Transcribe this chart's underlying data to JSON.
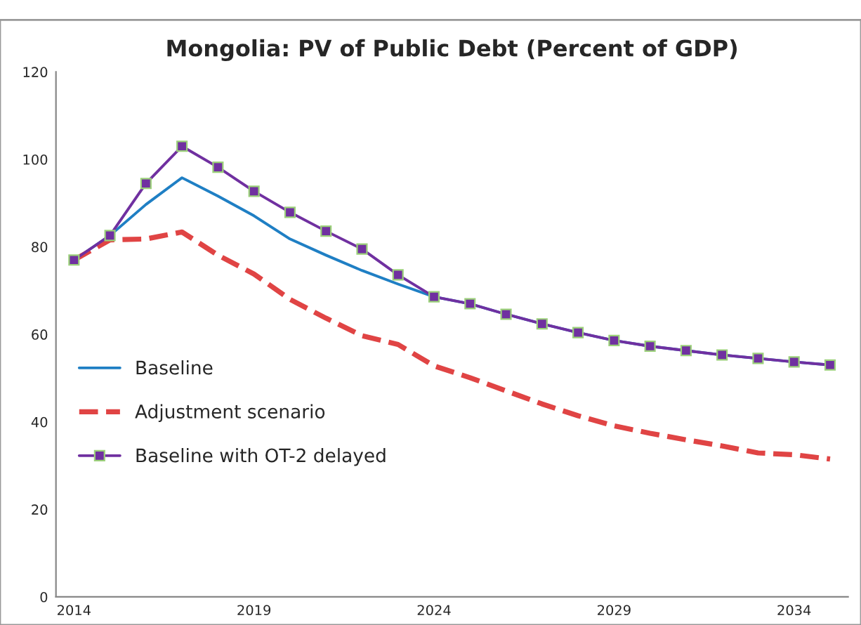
{
  "chart_data": {
    "type": "line",
    "title": "Mongolia: PV of Public Debt (Percent of GDP)",
    "x": [
      2014,
      2015,
      2016,
      2017,
      2018,
      2019,
      2020,
      2021,
      2022,
      2023,
      2024,
      2025,
      2026,
      2027,
      2028,
      2029,
      2030,
      2031,
      2032,
      2033,
      2034,
      2035
    ],
    "series": [
      {
        "name": "Baseline",
        "color": "#1f7fc4",
        "line_style": "solid",
        "marker": "none",
        "values": [
          77.0,
          82.6,
          89.7,
          95.8,
          91.6,
          87.1,
          81.8,
          78.1,
          74.6,
          71.5,
          68.6,
          67.0,
          64.6,
          62.4,
          60.4,
          58.6,
          57.3,
          56.3,
          55.3,
          54.5,
          53.7,
          53.0
        ]
      },
      {
        "name": "Adjustment scenario",
        "color": "#e04444",
        "line_style": "dashed",
        "marker": "none",
        "values": [
          77.0,
          81.6,
          81.8,
          83.4,
          78.1,
          73.8,
          68.0,
          63.7,
          59.7,
          57.7,
          52.8,
          50.1,
          47.1,
          44.1,
          41.4,
          39.1,
          37.4,
          35.9,
          34.5,
          32.9,
          32.5,
          31.5
        ]
      },
      {
        "name": "Baseline with OT-2 delayed",
        "color": "#7030a0",
        "line_style": "solid",
        "marker": "square",
        "values": [
          77.0,
          82.6,
          94.5,
          103.0,
          98.2,
          92.7,
          87.9,
          83.6,
          79.5,
          73.6,
          68.6,
          67.0,
          64.6,
          62.4,
          60.4,
          58.6,
          57.3,
          56.3,
          55.3,
          54.5,
          53.7,
          53.0
        ]
      }
    ],
    "xlim": [
      2013.5,
      2035.5
    ],
    "xticks": [
      2014,
      2019,
      2024,
      2029,
      2034
    ],
    "ylim": [
      0,
      120
    ],
    "yticks": [
      0,
      20,
      40,
      60,
      80,
      100,
      120
    ],
    "grid": false,
    "legend": "left"
  }
}
